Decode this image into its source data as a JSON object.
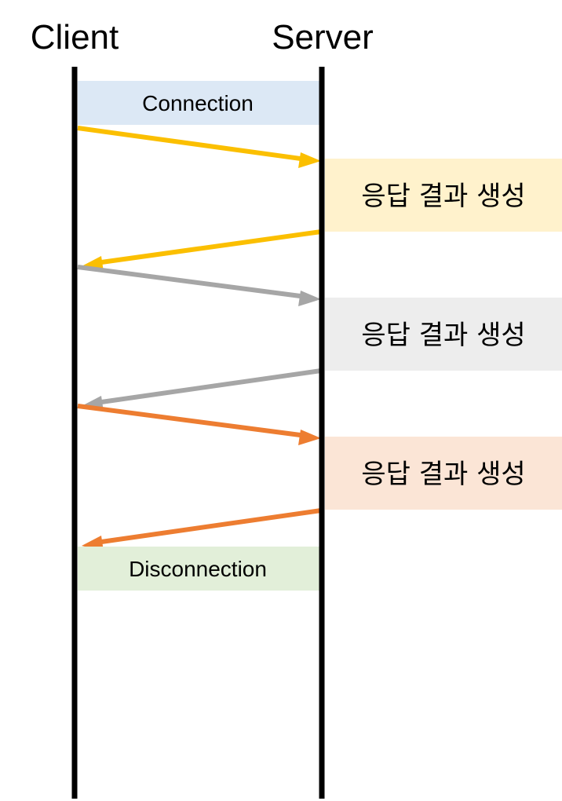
{
  "actors": {
    "client": "Client",
    "server": "Server"
  },
  "phases": {
    "connection": {
      "label": "Connection",
      "color": "#dce8f5"
    },
    "disconnection": {
      "label": "Disconnection",
      "color": "#e2efd9"
    }
  },
  "exchanges": [
    {
      "label": "응답 결과 생성",
      "arrow_color": "#fbbf00",
      "box_color": "#fff2cc"
    },
    {
      "label": "응답 결과 생성",
      "arrow_color": "#a6a6a6",
      "box_color": "#ededed"
    },
    {
      "label": "응답 결과 생성",
      "arrow_color": "#ed7d31",
      "box_color": "#fbe5d6"
    }
  ],
  "colors": {
    "lifeline": "#000000"
  }
}
